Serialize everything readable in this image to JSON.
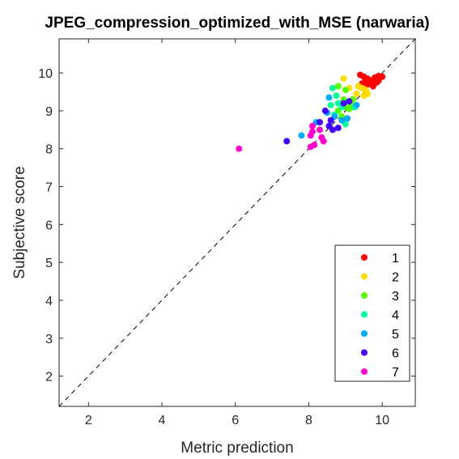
{
  "chart_data": {
    "type": "scatter",
    "title": "JPEG_compression_optimized_with_MSE (narwaria)",
    "xlabel": "Metric prediction",
    "ylabel": "Subjective score",
    "xlim": [
      1.2,
      10.9
    ],
    "ylim": [
      1.2,
      10.9
    ],
    "xticks": [
      2,
      4,
      6,
      8,
      10
    ],
    "yticks": [
      2,
      3,
      4,
      5,
      6,
      7,
      8,
      9,
      10
    ],
    "grid": false,
    "reference_line": "y = x (dashed black)",
    "legend_position": "bottom-right",
    "series": [
      {
        "name": "1",
        "color": "#ff0000",
        "points": [
          [
            9.4,
            9.95
          ],
          [
            9.5,
            9.9
          ],
          [
            9.6,
            9.85
          ],
          [
            9.7,
            9.8
          ],
          [
            9.8,
            9.88
          ],
          [
            9.9,
            9.92
          ],
          [
            10.0,
            9.9
          ],
          [
            9.85,
            9.75
          ],
          [
            9.75,
            9.65
          ],
          [
            9.6,
            9.7
          ],
          [
            9.45,
            9.72
          ],
          [
            9.9,
            9.8
          ],
          [
            9.55,
            9.8
          ]
        ]
      },
      {
        "name": "2",
        "color": "#ffdd00",
        "points": [
          [
            8.95,
            9.85
          ],
          [
            9.1,
            9.6
          ],
          [
            9.35,
            9.65
          ],
          [
            9.55,
            9.55
          ],
          [
            9.6,
            9.45
          ],
          [
            9.5,
            9.4
          ],
          [
            9.3,
            9.45
          ],
          [
            9.45,
            9.6
          ]
        ]
      },
      {
        "name": "3",
        "color": "#55ff00",
        "points": [
          [
            8.8,
            9.65
          ],
          [
            9.0,
            9.55
          ],
          [
            8.95,
            9.3
          ],
          [
            9.15,
            9.2
          ],
          [
            9.0,
            9.1
          ],
          [
            8.9,
            8.85
          ],
          [
            9.1,
            9.05
          ],
          [
            8.8,
            9.0
          ],
          [
            9.2,
            9.3
          ]
        ]
      },
      {
        "name": "4",
        "color": "#00ff99",
        "points": [
          [
            8.65,
            9.6
          ],
          [
            8.75,
            9.4
          ],
          [
            8.6,
            9.15
          ],
          [
            8.8,
            9.2
          ],
          [
            9.0,
            8.65
          ],
          [
            8.7,
            8.9
          ],
          [
            9.25,
            9.1
          ],
          [
            8.9,
            9.1
          ]
        ]
      },
      {
        "name": "5",
        "color": "#00aaff",
        "points": [
          [
            7.8,
            8.35
          ],
          [
            8.5,
            8.95
          ],
          [
            8.7,
            8.85
          ],
          [
            8.9,
            8.75
          ],
          [
            9.05,
            8.8
          ],
          [
            9.3,
            9.15
          ],
          [
            8.55,
            9.35
          ],
          [
            8.2,
            8.7
          ]
        ]
      },
      {
        "name": "6",
        "color": "#4400ff",
        "points": [
          [
            7.4,
            8.2
          ],
          [
            8.3,
            8.7
          ],
          [
            8.45,
            9.0
          ],
          [
            8.55,
            8.6
          ],
          [
            8.65,
            8.5
          ],
          [
            8.8,
            8.55
          ],
          [
            9.1,
            9.25
          ],
          [
            8.95,
            9.2
          ],
          [
            8.6,
            8.75
          ]
        ]
      },
      {
        "name": "7",
        "color": "#ff00cc",
        "points": [
          [
            6.1,
            8.0
          ],
          [
            8.05,
            8.05
          ],
          [
            8.15,
            8.1
          ],
          [
            8.05,
            8.35
          ],
          [
            8.1,
            8.6
          ],
          [
            8.3,
            8.5
          ],
          [
            8.35,
            8.3
          ],
          [
            8.4,
            8.2
          ],
          [
            8.1,
            8.45
          ]
        ]
      }
    ]
  }
}
